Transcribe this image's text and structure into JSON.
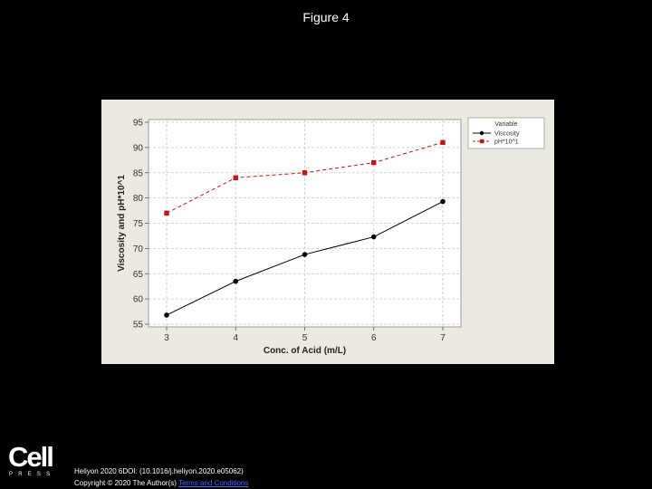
{
  "slide": {
    "title": "Figure 4"
  },
  "chart_data": {
    "type": "line",
    "x": [
      3,
      4,
      5,
      6,
      7
    ],
    "xlabel": "Conc. of Acid (m/L)",
    "ylabel": "Viscosity and pH*10^1",
    "xlim": [
      3,
      7
    ],
    "ylim": [
      55,
      95
    ],
    "xticks": [
      "3",
      "4",
      "5",
      "6",
      "7"
    ],
    "yticks": [
      "55",
      "60",
      "65",
      "70",
      "75",
      "80",
      "85",
      "90",
      "95"
    ],
    "grid": true,
    "legend_title": "Variable",
    "legend_position": "right",
    "series": [
      {
        "name": "Viscosity",
        "values": [
          56.8,
          63.5,
          68.8,
          72.3,
          79.3
        ],
        "color": "#000000",
        "marker": "circle",
        "line": "solid"
      },
      {
        "name": "pH*10^1",
        "values": [
          77,
          84,
          85,
          87,
          91
        ],
        "color": "#cc1111",
        "marker": "square",
        "line": "dashed"
      }
    ]
  },
  "footer": {
    "logo_word": "Cell",
    "logo_sub": "PRESS",
    "citation_line1": "Heliyon 2020 6DOI: (10.1016/j.heliyon.2020.e05062)",
    "copyright_prefix": "Copyright © 2020 The Author(s)",
    "terms_link": "Terms and Conditions"
  }
}
